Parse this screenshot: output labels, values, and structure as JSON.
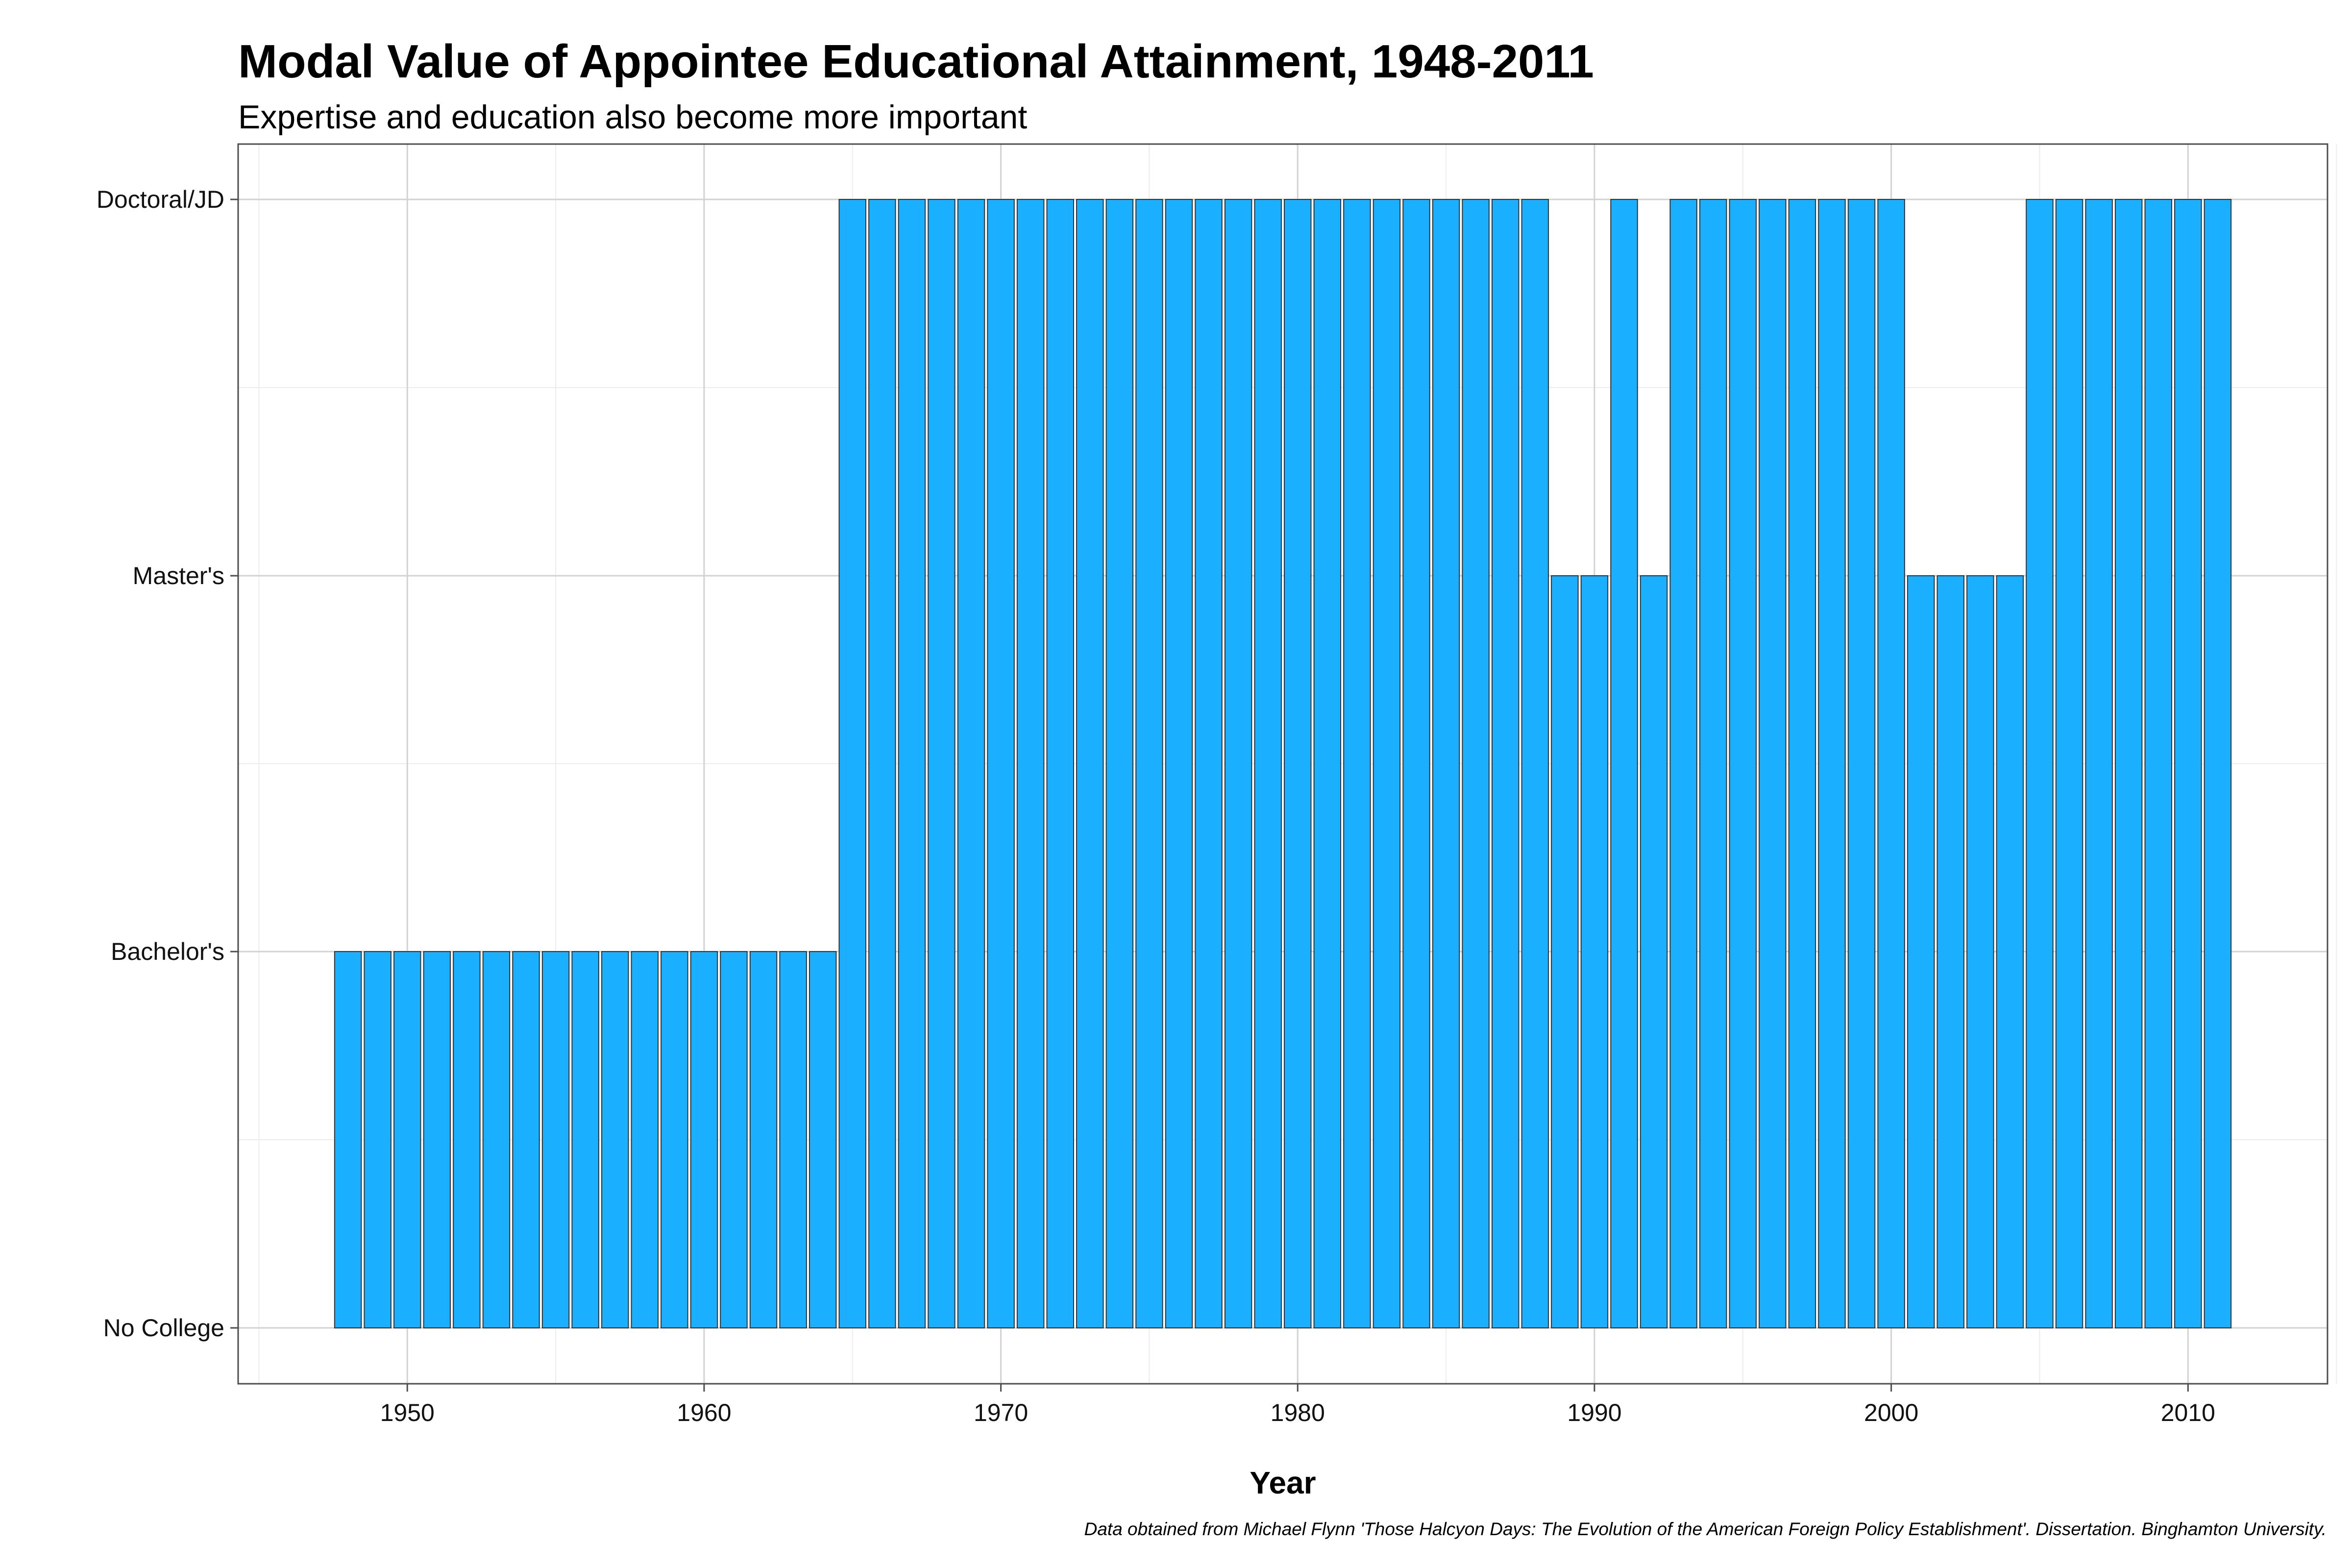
{
  "chart_data": {
    "type": "bar",
    "title": "Modal Value of Appointee Educational Attainment, 1948-2011",
    "subtitle": "Expertise and education also become more important",
    "xlabel": "Year",
    "ylabel": "",
    "caption": "Data obtained from Michael Flynn 'Those Halcyon Days: The Evolution of the American Foreign Policy Establishment'. Dissertation. Binghamton University.",
    "x_ticks": [
      1950,
      1960,
      1970,
      1980,
      1990,
      2000,
      2010
    ],
    "y_levels": [
      "No College",
      "Bachelor's",
      "Master's",
      "Doctoral/JD"
    ],
    "xlim": [
      1944.3,
      2014.7
    ],
    "grid": true,
    "legend": "none",
    "bar_color": "#1AAFFF",
    "bar_edge_color": "#333333",
    "x": [
      1948,
      1949,
      1950,
      1951,
      1952,
      1953,
      1954,
      1955,
      1956,
      1957,
      1958,
      1959,
      1960,
      1961,
      1962,
      1963,
      1964,
      1965,
      1966,
      1967,
      1968,
      1969,
      1970,
      1971,
      1972,
      1973,
      1974,
      1975,
      1976,
      1977,
      1978,
      1979,
      1980,
      1981,
      1982,
      1983,
      1984,
      1985,
      1986,
      1987,
      1988,
      1989,
      1990,
      1991,
      1992,
      1993,
      1994,
      1995,
      1996,
      1997,
      1998,
      1999,
      2000,
      2001,
      2002,
      2003,
      2004,
      2005,
      2006,
      2007,
      2008,
      2009,
      2010,
      2011
    ],
    "values": [
      "Bachelor's",
      "Bachelor's",
      "Bachelor's",
      "Bachelor's",
      "Bachelor's",
      "Bachelor's",
      "Bachelor's",
      "Bachelor's",
      "Bachelor's",
      "Bachelor's",
      "Bachelor's",
      "Bachelor's",
      "Bachelor's",
      "Bachelor's",
      "Bachelor's",
      "Bachelor's",
      "Bachelor's",
      "Doctoral/JD",
      "Doctoral/JD",
      "Doctoral/JD",
      "Doctoral/JD",
      "Doctoral/JD",
      "Doctoral/JD",
      "Doctoral/JD",
      "Doctoral/JD",
      "Doctoral/JD",
      "Doctoral/JD",
      "Doctoral/JD",
      "Doctoral/JD",
      "Doctoral/JD",
      "Doctoral/JD",
      "Doctoral/JD",
      "Doctoral/JD",
      "Doctoral/JD",
      "Doctoral/JD",
      "Doctoral/JD",
      "Doctoral/JD",
      "Doctoral/JD",
      "Doctoral/JD",
      "Doctoral/JD",
      "Doctoral/JD",
      "Master's",
      "Master's",
      "Doctoral/JD",
      "Master's",
      "Doctoral/JD",
      "Doctoral/JD",
      "Doctoral/JD",
      "Doctoral/JD",
      "Doctoral/JD",
      "Doctoral/JD",
      "Doctoral/JD",
      "Doctoral/JD",
      "Master's",
      "Master's",
      "Master's",
      "Master's",
      "Doctoral/JD",
      "Doctoral/JD",
      "Doctoral/JD",
      "Doctoral/JD",
      "Doctoral/JD",
      "Doctoral/JD",
      "Doctoral/JD"
    ]
  }
}
